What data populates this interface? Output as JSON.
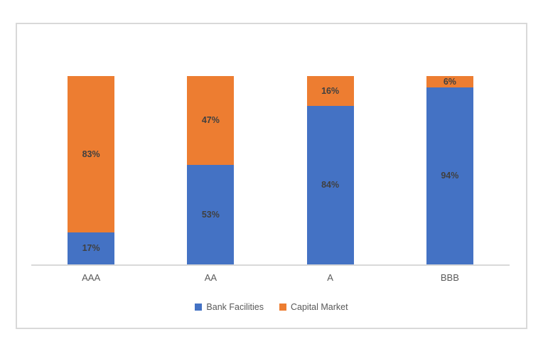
{
  "chart_data": {
    "type": "bar",
    "variant": "stacked-100-percent-column",
    "title": "",
    "xlabel": "",
    "ylabel": "",
    "ylim": [
      0,
      100
    ],
    "grid": false,
    "legend_position": "bottom",
    "categories": [
      "AAA",
      "AA",
      "A",
      "BBB"
    ],
    "series": [
      {
        "name": "Bank Facilities",
        "color": "#4472C4",
        "values": [
          17,
          53,
          84,
          94
        ],
        "labels": [
          "17%",
          "53%",
          "84%",
          "94%"
        ]
      },
      {
        "name": "Capital Market",
        "color": "#ED7D31",
        "values": [
          83,
          47,
          16,
          6
        ],
        "labels": [
          "83%",
          "47%",
          "16%",
          "6%"
        ]
      }
    ],
    "colors": {
      "data_label": "#404040",
      "axis_label": "#595959",
      "legend_text": "#595959",
      "axis_line": "#D9D9D9",
      "chart_border": "#D9D9D9",
      "background": "#FFFFFF"
    }
  }
}
